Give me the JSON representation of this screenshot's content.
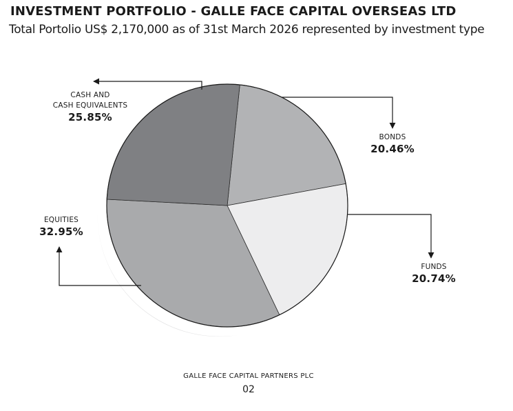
{
  "header": {
    "title": "INVESTMENT PORTFOLIO - GALLE FACE CAPITAL OVERSEAS LTD",
    "subtitle": "Total Portolio US$ 2,170,000 as of 31st March 2026 represented by investment type"
  },
  "chart_data": {
    "type": "pie",
    "title": "INVESTMENT PORTFOLIO - GALLE FACE CAPITAL OVERSEAS LTD",
    "subtitle": "Total Portolio US$ 2,170,000 as of 31st March 2026 represented by investment type",
    "slices": [
      {
        "label_lines": [
          "BONDS"
        ],
        "value": 20.46,
        "value_label": "20.46%",
        "color": "#b2b3b5"
      },
      {
        "label_lines": [
          "FUNDS"
        ],
        "value": 20.74,
        "value_label": "20.74%",
        "color": "#ededee"
      },
      {
        "label_lines": [
          "EQUITIES"
        ],
        "value": 32.95,
        "value_label": "32.95%",
        "color": "#a9aaac"
      },
      {
        "label_lines": [
          "CASH AND",
          "CASH EQUIVALENTS"
        ],
        "value": 25.85,
        "value_label": "25.85%",
        "color": "#7f8083"
      }
    ]
  },
  "footer": {
    "company": "GALLE FACE CAPITAL PARTNERS PLC",
    "page": "02"
  }
}
